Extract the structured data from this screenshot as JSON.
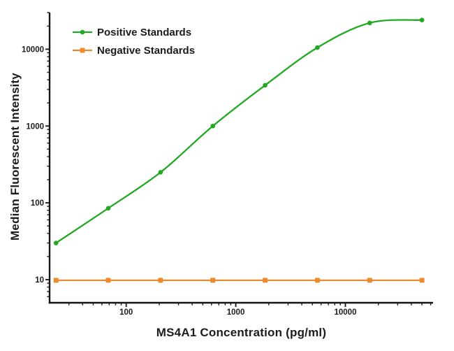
{
  "chart_data": {
    "type": "line",
    "title": "",
    "xlabel": "MS4A1 Concentration (pg/ml)",
    "ylabel": "Median Fluorescent Intensity",
    "x_scale": "log",
    "y_scale": "log",
    "xlim": [
      20,
      63096
    ],
    "ylim": [
      5,
      30000
    ],
    "grid": false,
    "legend_position": "top-left-inside",
    "axis_color": "#161616",
    "text_color": "#1c1c1c",
    "x_major_ticks": [
      {
        "value": 100,
        "label": "100"
      },
      {
        "value": 1000,
        "label": "1000"
      },
      {
        "value": 10000,
        "label": "10000"
      }
    ],
    "y_major_ticks": [
      {
        "value": 10,
        "label": "10"
      },
      {
        "value": 100,
        "label": "100"
      },
      {
        "value": 1000,
        "label": "1000"
      },
      {
        "value": 10000,
        "label": "10000"
      }
    ],
    "x": [
      22.9,
      68.6,
      205.8,
      617.3,
      1851.9,
      5555.6,
      16666.7,
      50000
    ],
    "series": [
      {
        "name": "Positive Standards",
        "color": "#22a822",
        "marker": "circle",
        "smooth": true,
        "values": [
          30,
          85,
          250,
          1000,
          3400,
          10500,
          22000,
          24000
        ]
      },
      {
        "name": "Negative Standards",
        "color": "#ec8b2d",
        "marker": "square",
        "smooth": false,
        "values": [
          9.8,
          9.8,
          9.8,
          9.8,
          9.8,
          9.8,
          9.8,
          9.8
        ]
      }
    ]
  }
}
